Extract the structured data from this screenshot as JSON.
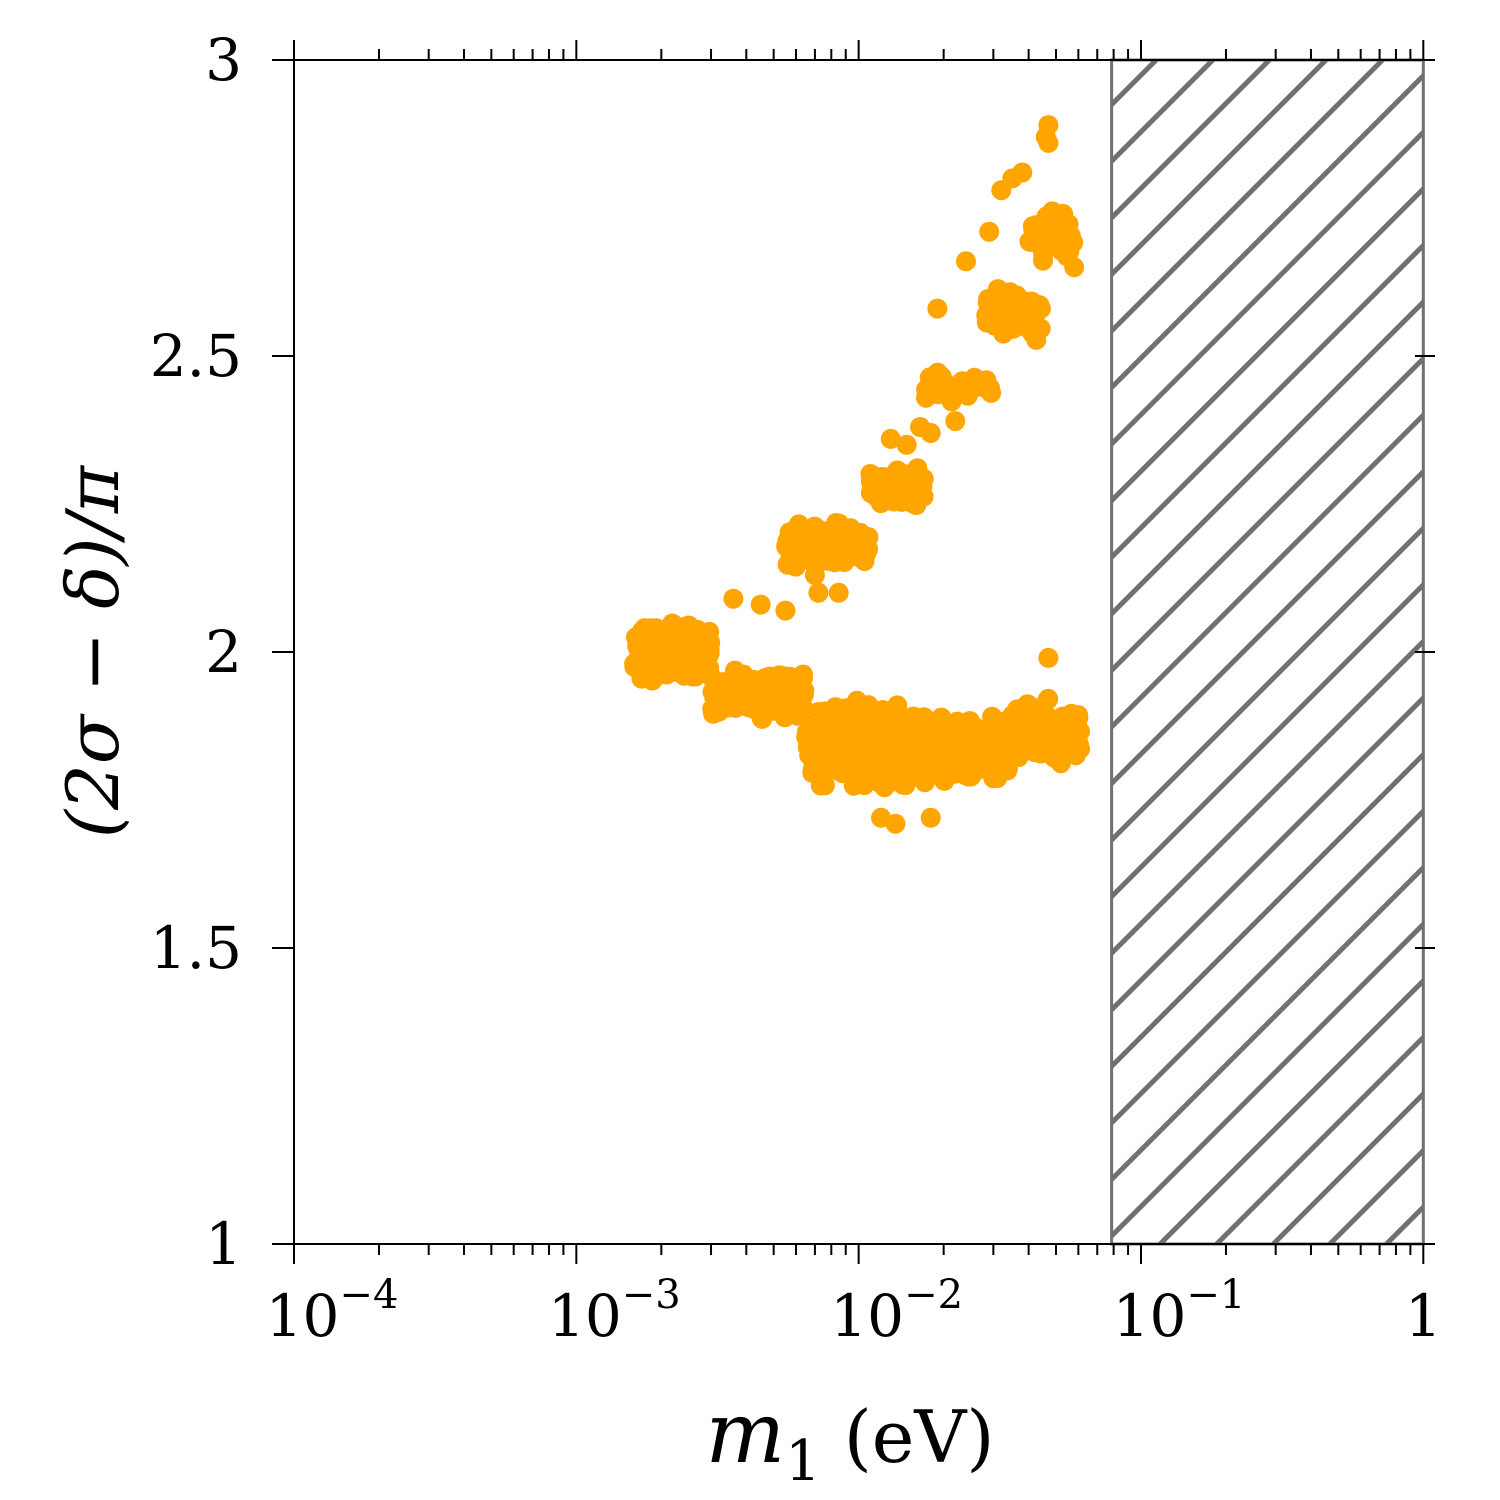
{
  "chart_data": {
    "type": "scatter",
    "title": "",
    "xlabel": "m_1 (eV)",
    "xlabel_parts": {
      "var": "m",
      "sub": "1",
      "unit": "(eV)"
    },
    "ylabel": "(2σ − δ)/π",
    "xscale": "log",
    "xlim": [
      0.0001,
      1.1
    ],
    "ylim": [
      1,
      3
    ],
    "x_ticks": [
      {
        "value": 0.0001,
        "base": "10",
        "exp": "−4"
      },
      {
        "value": 0.001,
        "base": "10",
        "exp": "−3"
      },
      {
        "value": 0.01,
        "base": "10",
        "exp": "−2"
      },
      {
        "value": 0.1,
        "base": "10",
        "exp": "−1"
      },
      {
        "value": 1,
        "base": "1",
        "exp": ""
      }
    ],
    "y_ticks": [
      {
        "value": 1,
        "label": "1"
      },
      {
        "value": 1.5,
        "label": "1.5"
      },
      {
        "value": 2,
        "label": "2"
      },
      {
        "value": 2.5,
        "label": "2.5"
      },
      {
        "value": 3,
        "label": "3"
      }
    ],
    "grid": false,
    "excluded_region": {
      "x_start": 0.0787,
      "x_end": 1.0,
      "style": "hatched",
      "color": "#707070"
    },
    "series": [
      {
        "color": "#ffa500",
        "clusters": [
          {
            "x0": 0.0016,
            "x1": 0.003,
            "y_center": 2.0,
            "y_halfwidth": 0.06,
            "count": 180
          },
          {
            "x0": 0.003,
            "x1": 0.0065,
            "y_center": 1.93,
            "y_halfwidth": 0.05,
            "count": 170
          },
          {
            "x0": 0.0065,
            "x1": 0.016,
            "y_center": 1.84,
            "y_halfwidth": 0.09,
            "count": 260
          },
          {
            "x0": 0.016,
            "x1": 0.035,
            "y_center": 1.83,
            "y_halfwidth": 0.08,
            "count": 190
          },
          {
            "x0": 0.035,
            "x1": 0.061,
            "y_center": 1.86,
            "y_halfwidth": 0.07,
            "count": 130
          },
          {
            "x0": 0.0055,
            "x1": 0.011,
            "y_center": 2.18,
            "y_halfwidth": 0.05,
            "count": 90
          },
          {
            "x0": 0.011,
            "x1": 0.017,
            "y_center": 2.28,
            "y_halfwidth": 0.05,
            "count": 60
          },
          {
            "x0": 0.017,
            "x1": 0.03,
            "y_center": 2.45,
            "y_halfwidth": 0.05,
            "count": 30
          },
          {
            "x0": 0.028,
            "x1": 0.045,
            "y_center": 2.57,
            "y_halfwidth": 0.06,
            "count": 70
          },
          {
            "x0": 0.04,
            "x1": 0.058,
            "y_center": 2.7,
            "y_halfwidth": 0.06,
            "count": 40
          }
        ],
        "points": [
          [
            0.0045,
            2.08
          ],
          [
            0.0036,
            2.09
          ],
          [
            0.0055,
            2.07
          ],
          [
            0.0072,
            2.1
          ],
          [
            0.007,
            2.13
          ],
          [
            0.0085,
            2.1
          ],
          [
            0.013,
            2.36
          ],
          [
            0.0148,
            2.35
          ],
          [
            0.0165,
            2.38
          ],
          [
            0.018,
            2.37
          ],
          [
            0.019,
            2.58
          ],
          [
            0.02,
            2.45
          ],
          [
            0.024,
            2.66
          ],
          [
            0.029,
            2.71
          ],
          [
            0.032,
            2.78
          ],
          [
            0.035,
            2.8
          ],
          [
            0.038,
            2.81
          ],
          [
            0.046,
            2.87
          ],
          [
            0.047,
            2.89
          ],
          [
            0.047,
            2.86
          ],
          [
            0.053,
            2.74
          ],
          [
            0.058,
            2.65
          ],
          [
            0.047,
            1.99
          ],
          [
            0.022,
            2.39
          ],
          [
            0.012,
            1.72
          ],
          [
            0.0135,
            1.71
          ],
          [
            0.018,
            1.72
          ]
        ]
      }
    ]
  }
}
